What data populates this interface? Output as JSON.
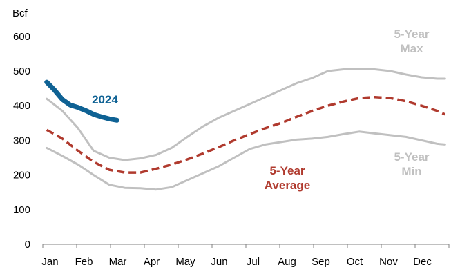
{
  "chart_data": {
    "type": "line",
    "unit_label": "Bcf",
    "ylim": [
      0,
      600
    ],
    "yticks": [
      0,
      100,
      200,
      300,
      400,
      500,
      600
    ],
    "categories": [
      "Jan",
      "Feb",
      "Mar",
      "Apr",
      "May",
      "Jun",
      "Jul",
      "Aug",
      "Sep",
      "Oct",
      "Nov",
      "Dec"
    ],
    "grid": false,
    "legend": "none",
    "x_unit": "week of year",
    "series": [
      {
        "name": "5-Year Max",
        "label_lines": [
          "5-Year",
          "Max"
        ],
        "color": "#c0c0c0",
        "style": "solid",
        "x": [
          0,
          2,
          4,
          6,
          8,
          10,
          12,
          14,
          16,
          18,
          20,
          22,
          24,
          26,
          28,
          30,
          32,
          34,
          36,
          38,
          40,
          42,
          44,
          46,
          48,
          50,
          51
        ],
        "values": [
          420,
          385,
          335,
          270,
          250,
          243,
          248,
          258,
          278,
          310,
          340,
          365,
          385,
          405,
          425,
          445,
          465,
          480,
          500,
          505,
          505,
          505,
          500,
          490,
          482,
          478,
          478
        ]
      },
      {
        "name": "5-Year Min",
        "label_lines": [
          "5-Year",
          "Min"
        ],
        "color": "#c0c0c0",
        "style": "solid",
        "x": [
          0,
          2,
          4,
          6,
          8,
          10,
          12,
          14,
          16,
          18,
          20,
          22,
          24,
          26,
          28,
          30,
          32,
          34,
          36,
          38,
          40,
          42,
          44,
          46,
          48,
          50,
          51
        ],
        "values": [
          278,
          255,
          230,
          200,
          172,
          163,
          162,
          158,
          165,
          185,
          205,
          225,
          250,
          275,
          288,
          295,
          302,
          305,
          310,
          318,
          325,
          320,
          315,
          310,
          300,
          290,
          288
        ]
      },
      {
        "name": "5-Year Average",
        "label_lines": [
          "5-Year",
          "Average"
        ],
        "color": "#b03a2e",
        "style": "dashed",
        "x": [
          0,
          2,
          4,
          6,
          8,
          10,
          12,
          14,
          16,
          18,
          20,
          22,
          24,
          26,
          28,
          30,
          32,
          34,
          36,
          38,
          40,
          42,
          44,
          46,
          48,
          50,
          51
        ],
        "values": [
          330,
          305,
          270,
          238,
          215,
          207,
          207,
          218,
          230,
          245,
          262,
          280,
          300,
          318,
          335,
          350,
          368,
          385,
          400,
          412,
          422,
          425,
          422,
          413,
          400,
          385,
          375
        ]
      },
      {
        "name": "2024",
        "label_lines": [
          "2024"
        ],
        "color": "#0f6294",
        "style": "thick",
        "x": [
          0,
          1,
          2,
          3,
          4,
          5,
          6,
          7,
          8,
          9
        ],
        "values": [
          468,
          445,
          418,
          402,
          395,
          386,
          375,
          368,
          362,
          358
        ]
      }
    ]
  }
}
